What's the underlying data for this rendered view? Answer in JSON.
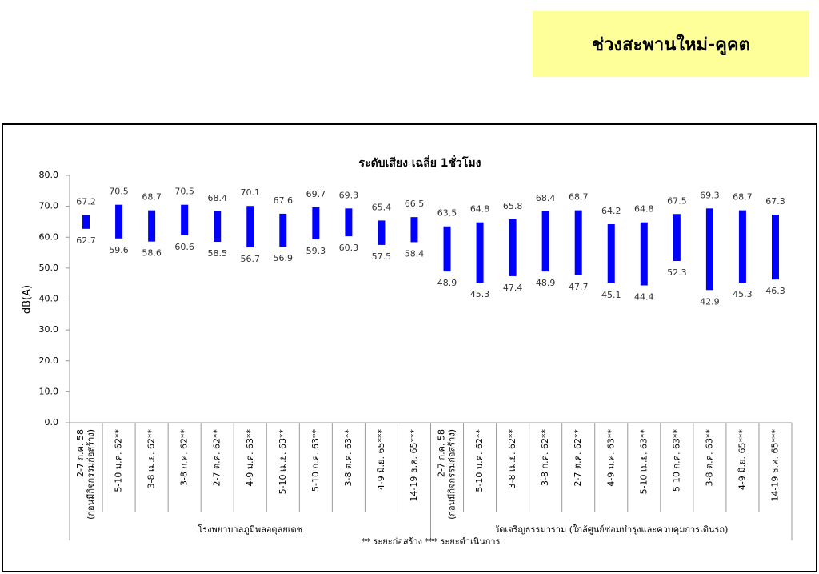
{
  "header": {
    "title": "ช่วงสะพานใหม่-คูคต"
  },
  "chart_data": {
    "type": "range_bar",
    "title": "ระดับเสียง เฉลี่ย 1ชั่วโมง",
    "y_label": "dB(A)",
    "color": "#0000ff",
    "ylim": [
      0,
      80
    ],
    "yticks": [
      {
        "value": 0,
        "label": "0.0"
      },
      {
        "value": 10,
        "label": "10.0"
      },
      {
        "value": 20,
        "label": "20.0"
      },
      {
        "value": 30,
        "label": "30.0"
      },
      {
        "value": 40,
        "label": "40.0"
      },
      {
        "value": 50,
        "label": "50.0"
      },
      {
        "value": 60,
        "label": "60.0"
      },
      {
        "value": 70,
        "label": "70.0"
      },
      {
        "value": 80,
        "label": "80.0"
      }
    ],
    "notes": [
      "** ระยะก่อสร้าง",
      "*** ระยะดำเนินการ"
    ],
    "groups": [
      {
        "name": "โรงพยาบาลภูมิพลอดุลยเดช",
        "categories": [
          [
            "2-7 ก.ค. 58",
            "(ก่อนมีกิจกรรมก่อสร้าง)"
          ],
          [
            "5-10 ม.ค. 62**"
          ],
          [
            "3-8 เม.ย. 62**"
          ],
          [
            "3-8 ก.ค. 62**"
          ],
          [
            "2-7 ต.ค. 62**"
          ],
          [
            "4-9 ม.ค. 63**"
          ],
          [
            "5-10 เม.ย. 63**"
          ],
          [
            "5-10 ก.ค. 63**"
          ],
          [
            "3-8 ต.ค. 63**"
          ],
          [
            "4-9 มิ.ย. 65***"
          ],
          [
            "14-19 ธ.ค. 65***"
          ]
        ],
        "high": [
          67.2,
          70.5,
          68.7,
          70.5,
          68.4,
          70.1,
          67.6,
          69.7,
          69.3,
          65.4,
          66.5
        ],
        "low": [
          62.7,
          59.6,
          58.6,
          60.6,
          58.5,
          56.7,
          56.9,
          59.3,
          60.3,
          57.5,
          58.4
        ]
      },
      {
        "name": "วัดเจริญธรรมาราม (ใกล้ศูนย์ซ่อมบำรุงและควบคุมการเดินรถ)",
        "categories": [
          [
            "2-7 ก.ค. 58",
            "(ก่อนมีกิจกรรมก่อสร้าง)"
          ],
          [
            "5-10 ม.ค. 62**"
          ],
          [
            "3-8 เม.ย. 62**"
          ],
          [
            "3-8 ก.ค. 62**"
          ],
          [
            "2-7 ต.ค. 62**"
          ],
          [
            "4-9 ม.ค. 63**"
          ],
          [
            "5-10 เม.ย. 63**"
          ],
          [
            "5-10 ก.ค. 63**"
          ],
          [
            "3-8 ต.ค. 63**"
          ],
          [
            "4-9 มิ.ย. 65***"
          ],
          [
            "14-19 ธ.ค. 65***"
          ]
        ],
        "high": [
          63.5,
          64.8,
          65.8,
          68.4,
          68.7,
          64.2,
          64.8,
          67.5,
          69.3,
          68.7,
          67.3
        ],
        "low": [
          48.9,
          45.3,
          47.4,
          48.9,
          47.7,
          45.1,
          44.4,
          52.3,
          42.9,
          45.3,
          46.3
        ]
      }
    ]
  }
}
